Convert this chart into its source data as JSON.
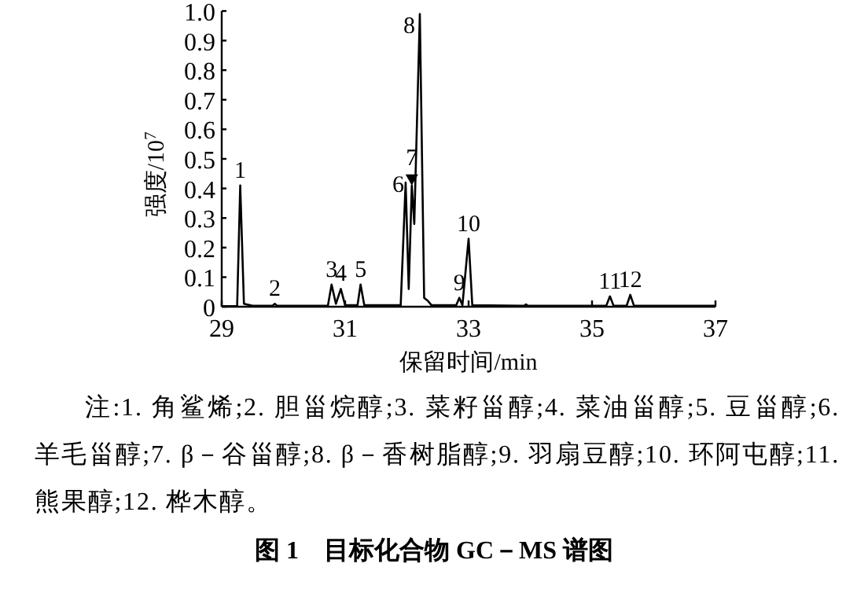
{
  "chart_data": {
    "type": "line",
    "title": "图 1　目标化合物 GC－MS 谱图",
    "xlabel": "保留时间/min",
    "ylabel": "强度/10$^{7}$",
    "x": [
      29.0,
      29.25,
      29.3,
      29.36,
      29.5,
      29.82,
      29.86,
      29.9,
      30.72,
      30.78,
      30.85,
      30.93,
      31.0,
      31.2,
      31.25,
      31.31,
      31.9,
      31.98,
      32.03,
      32.08,
      32.12,
      32.21,
      32.28,
      32.34,
      32.4,
      32.8,
      32.85,
      32.9,
      33.0,
      33.06,
      33.9,
      33.93,
      33.96,
      35.23,
      35.29,
      35.35,
      35.56,
      35.62,
      35.68,
      37.0
    ],
    "series": [
      {
        "color": "#000000",
        "values": [
          0.002,
          0.002,
          0.41,
          0.01,
          0.003,
          0.003,
          0.01,
          0.003,
          0.003,
          0.075,
          0.01,
          0.06,
          0.005,
          0.005,
          0.075,
          0.005,
          0.005,
          0.42,
          0.06,
          0.41,
          0.28,
          0.99,
          0.03,
          0.02,
          0.005,
          0.005,
          0.03,
          0.005,
          0.23,
          0.005,
          0.003,
          0.008,
          0.003,
          0.003,
          0.035,
          0.003,
          0.003,
          0.04,
          0.003,
          0.003
        ]
      }
    ],
    "xlim": [
      29,
      37
    ],
    "ylim": [
      0,
      1
    ],
    "xticks": [
      29,
      31,
      33,
      35,
      37
    ],
    "yticks": [
      0,
      0.1,
      0.2,
      0.3,
      0.4,
      0.5,
      0.6,
      0.7,
      0.8,
      0.9,
      {
        "value": 1,
        "label": "1.0"
      }
    ],
    "annotations": [
      {
        "text": "1",
        "x": 29.3,
        "y": 0.41
      },
      {
        "text": "2",
        "x": 29.86,
        "y": 0.01
      },
      {
        "text": "3",
        "x": 30.78,
        "y": 0.075
      },
      {
        "text": "4",
        "x": 30.93,
        "y": 0.06
      },
      {
        "text": "5",
        "x": 31.25,
        "y": 0.075
      },
      {
        "text": "6",
        "x": 31.98,
        "y": 0.42
      },
      {
        "text": "7",
        "x": 32.08,
        "y": 0.41
      },
      {
        "text": "8",
        "x": 32.21,
        "y": 0.99
      },
      {
        "text": "9",
        "x": 32.85,
        "y": 0.03
      },
      {
        "text": "10",
        "x": 33.0,
        "y": 0.23
      },
      {
        "text": "11",
        "x": 35.29,
        "y": 0.035
      },
      {
        "text": "12",
        "x": 35.62,
        "y": 0.04
      },
      "注:1. 角鲨烯;2. 胆甾烷醇;3. 菜籽甾醇;4. 菜油甾醇;5. 豆甾醇;6. 羊毛甾醇;7. β－谷甾醇;8. β－香树脂醇;9. 羽扇豆醇;10. 环阿屯醇;11. 熊果醇;12. 桦木醇。"
    ]
  }
}
